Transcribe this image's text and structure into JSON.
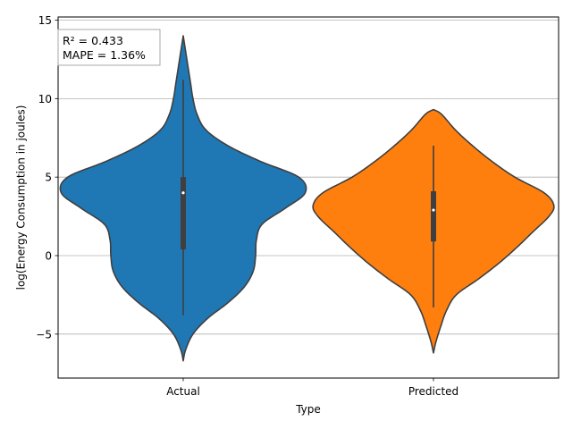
{
  "chart_data": {
    "type": "violin",
    "title": "",
    "xlabel": "Type",
    "ylabel": "log(Energy Consumption in joules)",
    "ylim": [
      -7.8,
      15.2
    ],
    "yticks": [
      -5,
      0,
      5,
      10,
      15
    ],
    "ytick_labels": [
      "−5",
      "0",
      "5",
      "10",
      "15"
    ],
    "grid": "y",
    "categories": [
      "Actual",
      "Predicted"
    ],
    "series": [
      {
        "category": "Actual",
        "color": "#1f77b4",
        "q1": 0.4,
        "median": 4.0,
        "q3": 5.0,
        "whisker_low": -3.8,
        "whisker_high": 11.2,
        "density": [
          [
            -6.7,
            0.0
          ],
          [
            -6.0,
            0.03
          ],
          [
            -5.0,
            0.12
          ],
          [
            -4.0,
            0.3
          ],
          [
            -3.0,
            0.55
          ],
          [
            -2.0,
            0.75
          ],
          [
            -1.0,
            0.86
          ],
          [
            0.0,
            0.89
          ],
          [
            1.0,
            0.9
          ],
          [
            2.0,
            0.97
          ],
          [
            3.0,
            1.25
          ],
          [
            4.0,
            1.5
          ],
          [
            5.0,
            1.42
          ],
          [
            6.0,
            0.95
          ],
          [
            7.0,
            0.55
          ],
          [
            8.0,
            0.28
          ],
          [
            9.0,
            0.17
          ],
          [
            10.0,
            0.12
          ],
          [
            11.0,
            0.09
          ],
          [
            12.0,
            0.06
          ],
          [
            13.0,
            0.03
          ],
          [
            14.0,
            0.0
          ]
        ]
      },
      {
        "category": "Predicted",
        "color": "#ff7f0e",
        "q1": 0.9,
        "median": 2.9,
        "q3": 4.1,
        "whisker_low": -3.3,
        "whisker_high": 7.0,
        "density": [
          [
            -6.2,
            0.0
          ],
          [
            -5.5,
            0.03
          ],
          [
            -4.5,
            0.09
          ],
          [
            -3.5,
            0.16
          ],
          [
            -2.5,
            0.28
          ],
          [
            -1.5,
            0.55
          ],
          [
            -0.5,
            0.8
          ],
          [
            0.5,
            1.02
          ],
          [
            1.5,
            1.22
          ],
          [
            2.5,
            1.42
          ],
          [
            3.2,
            1.48
          ],
          [
            4.0,
            1.36
          ],
          [
            5.0,
            1.0
          ],
          [
            6.0,
            0.72
          ],
          [
            7.0,
            0.48
          ],
          [
            8.0,
            0.27
          ],
          [
            9.0,
            0.1
          ],
          [
            9.3,
            0.0
          ]
        ]
      }
    ],
    "annotation": {
      "lines": [
        "R² = 0.433",
        "MAPE = 1.36%"
      ],
      "position": "top-left"
    }
  }
}
